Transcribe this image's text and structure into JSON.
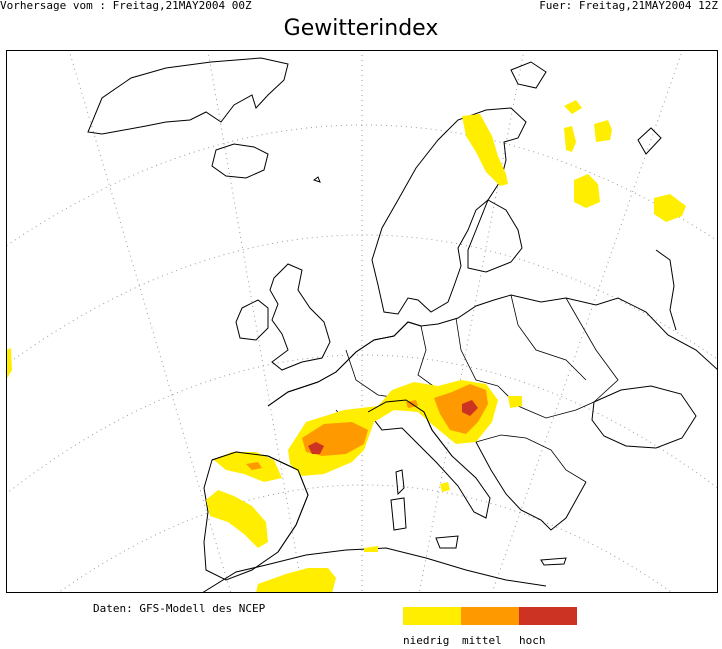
{
  "header": {
    "left": "Vorhersage vom : Freitag,21MAY2004 00Z",
    "right": "Fuer: Freitag,21MAY2004 12Z"
  },
  "title": "Gewitterindex",
  "source": "Daten: GFS-Modell des NCEP",
  "legend": {
    "items": [
      {
        "label": "niedrig",
        "color": "#ffee00"
      },
      {
        "label": "mittel",
        "color": "#ff9900"
      },
      {
        "label": "hoch",
        "color": "#cc3322"
      }
    ]
  }
}
